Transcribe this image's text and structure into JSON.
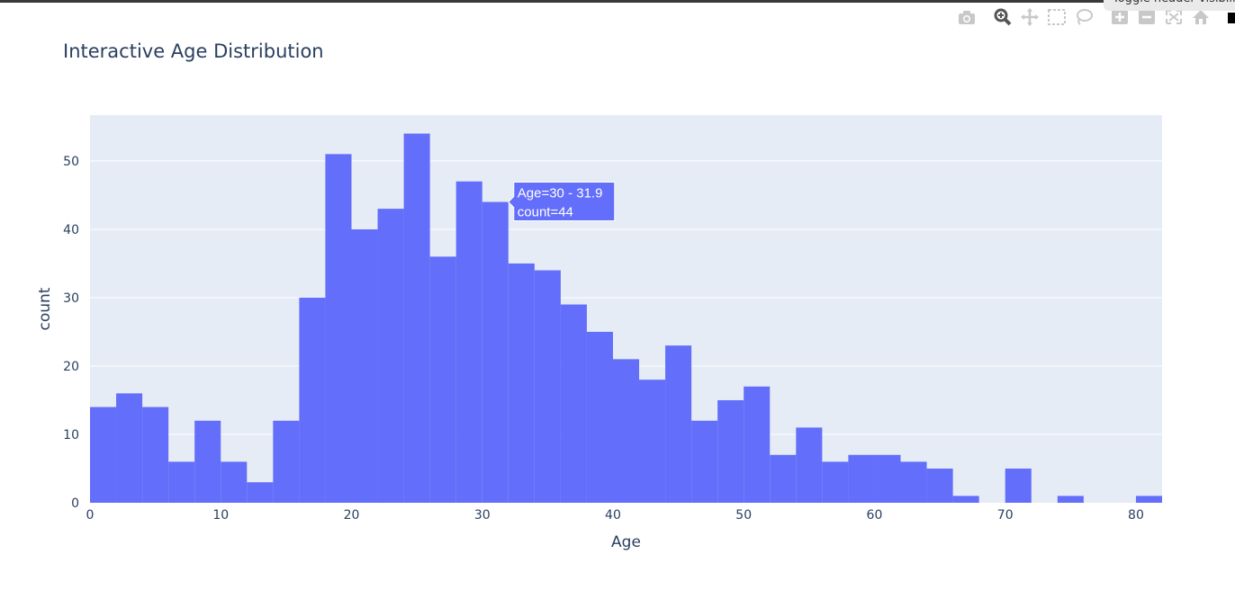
{
  "chart_data": {
    "type": "bar",
    "title": "Interactive Age Distribution",
    "xlabel": "Age",
    "ylabel": "count",
    "xlim": [
      0,
      82
    ],
    "ylim": [
      0,
      56.7
    ],
    "bin_width": 2,
    "bin_start": 0,
    "values": [
      14,
      16,
      14,
      6,
      12,
      6,
      3,
      12,
      30,
      51,
      40,
      43,
      54,
      36,
      47,
      44,
      35,
      34,
      29,
      25,
      21,
      18,
      23,
      12,
      15,
      17,
      7,
      11,
      6,
      7,
      7,
      6,
      5,
      1,
      0,
      5,
      0,
      1,
      0,
      0,
      1
    ],
    "x_ticks": [
      0,
      10,
      20,
      30,
      40,
      50,
      60,
      70,
      80
    ],
    "y_ticks": [
      0,
      10,
      20,
      30,
      40,
      50
    ],
    "grid": true,
    "colors": {
      "bar": "#636efa",
      "plot_bg": "#e5ecf6",
      "grid": "#ffffff",
      "text": "#2a3f5f"
    },
    "hover": {
      "line1": "Age=30 - 31.9",
      "line2": "count=44",
      "bin_index": 15
    }
  },
  "modebar": {
    "tooltip": "Toggle header visibility",
    "buttons": [
      "camera-icon",
      "zoom-icon",
      "pan-icon",
      "box-select-icon",
      "lasso-icon",
      "zoom-in-icon",
      "zoom-out-icon",
      "autoscale-icon",
      "home-icon"
    ]
  }
}
